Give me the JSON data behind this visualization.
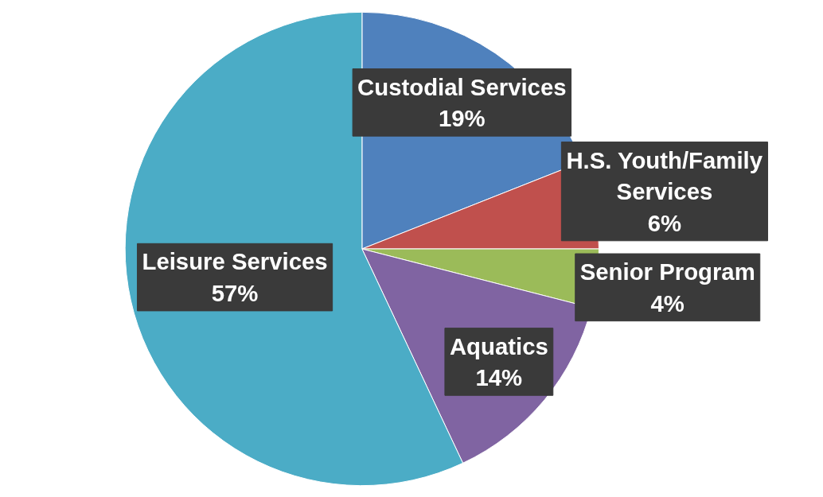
{
  "chart_data": {
    "type": "pie",
    "categories": [
      "Custodial Services",
      "H.S. Youth/Family Services",
      "Senior Program",
      "Aquatics",
      "Leisure Services"
    ],
    "values": [
      19,
      6,
      4,
      14,
      57
    ],
    "colors": [
      "#4f81bd",
      "#c0504d",
      "#9bbb59",
      "#8064a2",
      "#4bacc6"
    ],
    "value_labels": [
      "19%",
      "6%",
      "4%",
      "14%",
      "57%"
    ]
  }
}
